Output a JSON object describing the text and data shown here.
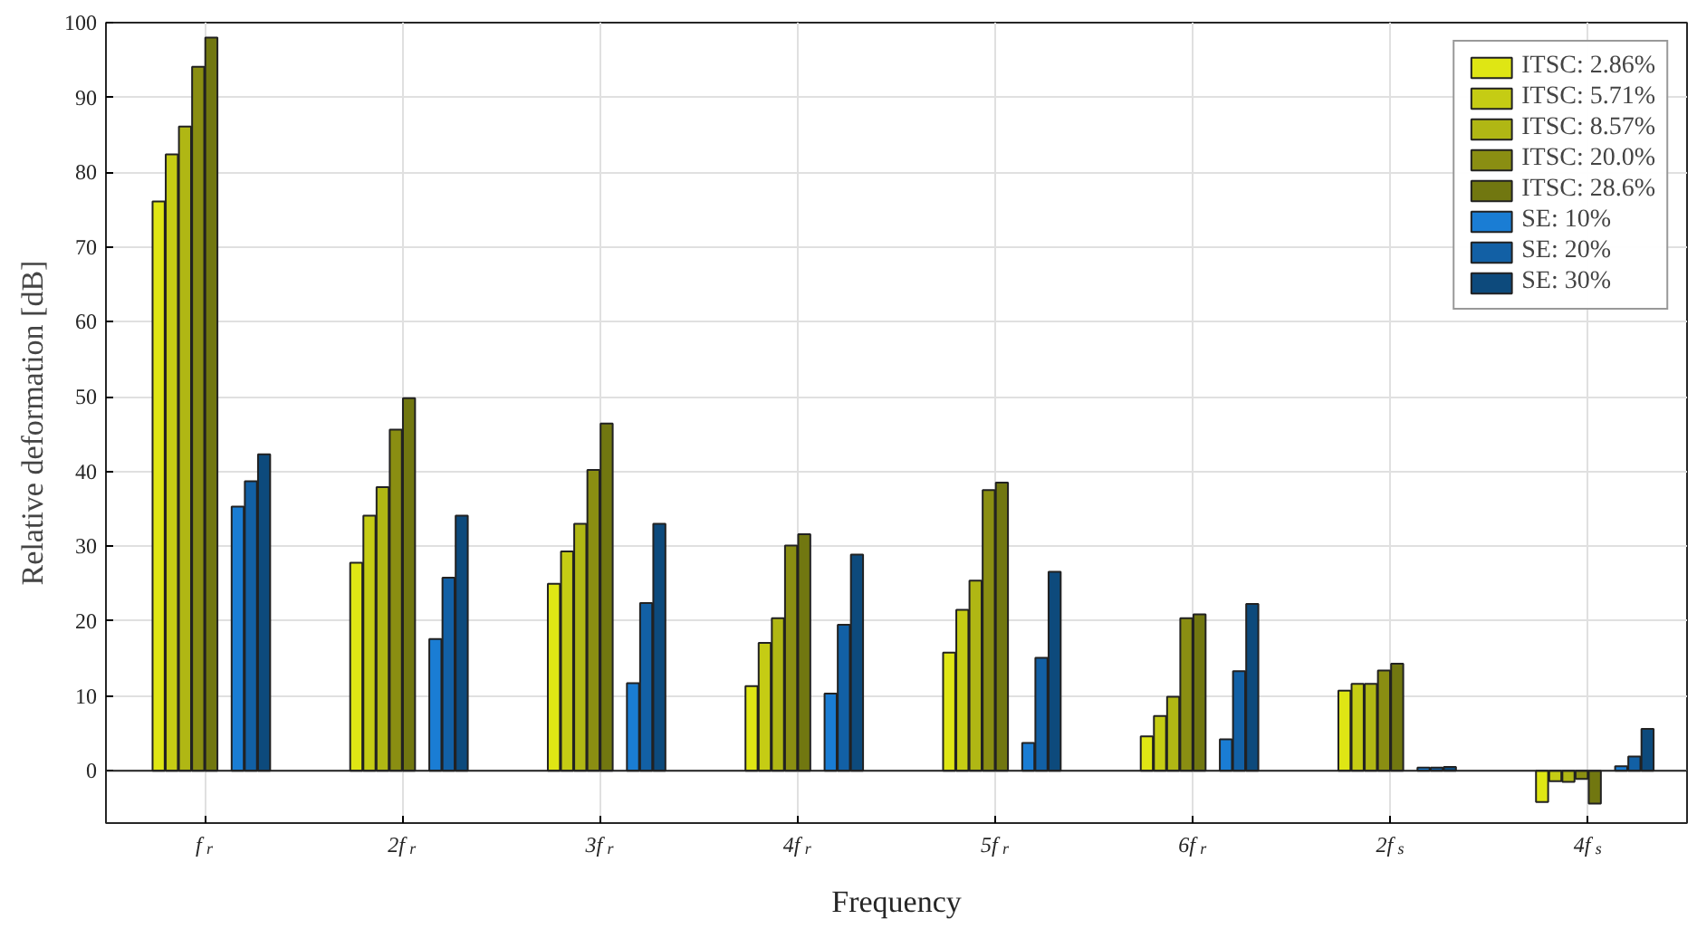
{
  "chart_data": {
    "type": "bar",
    "xlabel": "Frequency",
    "ylabel": "Relative deformation [dB]",
    "categories": [
      "f$_{r}$",
      "2f$_{r}$",
      "3f$_{r}$",
      "4f$_{r}$",
      "5f$_{r}$",
      "6f$_{r}$",
      "2f$_{s}$",
      "4f$_{s}$"
    ],
    "series": [
      {
        "name": "ITSC: 2.86%",
        "color": "#dfe614",
        "values": [
          76.1,
          27.8,
          25.0,
          11.3,
          15.8,
          4.6,
          10.7,
          -4.2
        ]
      },
      {
        "name": "ITSC: 5.71%",
        "color": "#c5cc14",
        "values": [
          82.4,
          34.1,
          29.3,
          17.1,
          21.5,
          7.3,
          11.6,
          -1.4
        ]
      },
      {
        "name": "ITSC: 8.57%",
        "color": "#b0b714",
        "values": [
          86.1,
          37.9,
          33.0,
          20.4,
          25.4,
          9.9,
          11.6,
          -1.5
        ]
      },
      {
        "name": "ITSC: 20.0%",
        "color": "#8a8e12",
        "values": [
          94.1,
          45.6,
          40.2,
          30.1,
          37.5,
          20.4,
          13.4,
          -1.1
        ]
      },
      {
        "name": "ITSC: 28.6%",
        "color": "#717710",
        "values": [
          98.0,
          49.8,
          46.4,
          31.6,
          38.5,
          20.9,
          14.3,
          -4.4
        ]
      },
      {
        "name": "SE: 10%",
        "color": "#1a7dd4",
        "values": [
          35.3,
          17.6,
          11.7,
          10.3,
          3.7,
          4.2,
          0.4,
          0.6
        ]
      },
      {
        "name": "SE: 20%",
        "color": "#1260a5",
        "values": [
          38.7,
          25.8,
          22.4,
          19.5,
          15.1,
          13.3,
          0.4,
          1.9
        ]
      },
      {
        "name": "SE: 30%",
        "color": "#0d4a7c",
        "values": [
          42.3,
          34.1,
          33.0,
          28.9,
          26.6,
          22.3,
          0.5,
          5.6
        ]
      }
    ],
    "ylim": [
      -7,
      100
    ],
    "yticks": [
      0,
      10,
      20,
      30,
      40,
      50,
      60,
      70,
      80,
      90,
      100
    ],
    "grid": true,
    "legend": "top right"
  }
}
